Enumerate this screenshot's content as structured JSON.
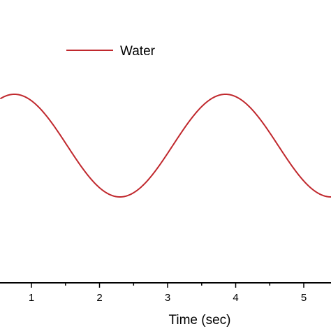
{
  "chart_data": {
    "type": "line",
    "xlabel": "Time (sec)",
    "ylabel": "",
    "xlim": [
      0.55,
      5.4
    ],
    "ylim": [
      -1.0,
      1.0
    ],
    "x_ticks": [
      1,
      2,
      3,
      4,
      5
    ],
    "x_tick_labels": [
      "1",
      "2",
      "3",
      "4",
      "5"
    ],
    "grid": false,
    "legend": {
      "placement": "top-left"
    },
    "series": [
      {
        "name": "Water",
        "color": "#c0282d",
        "period": 3.1,
        "amplitude": 1.0,
        "peaks_x": [
          0.75,
          3.85
        ],
        "troughs_x": [
          2.3,
          5.4
        ],
        "x": [
          0.55,
          0.75,
          0.95,
          1.15,
          1.35,
          1.55,
          1.75,
          1.95,
          2.15,
          2.3,
          2.45,
          2.65,
          2.85,
          3.05,
          3.25,
          3.45,
          3.65,
          3.85,
          4.05,
          4.25,
          4.45,
          4.65,
          4.85,
          5.05,
          5.25,
          5.4
        ],
        "y": [
          0.92,
          1.0,
          0.92,
          0.68,
          0.34,
          -0.04,
          -0.42,
          -0.74,
          -0.95,
          -1.0,
          -0.95,
          -0.74,
          -0.42,
          -0.04,
          0.34,
          0.68,
          0.92,
          1.0,
          0.92,
          0.68,
          0.34,
          -0.04,
          -0.42,
          -0.74,
          -0.95,
          -1.0
        ]
      }
    ]
  }
}
